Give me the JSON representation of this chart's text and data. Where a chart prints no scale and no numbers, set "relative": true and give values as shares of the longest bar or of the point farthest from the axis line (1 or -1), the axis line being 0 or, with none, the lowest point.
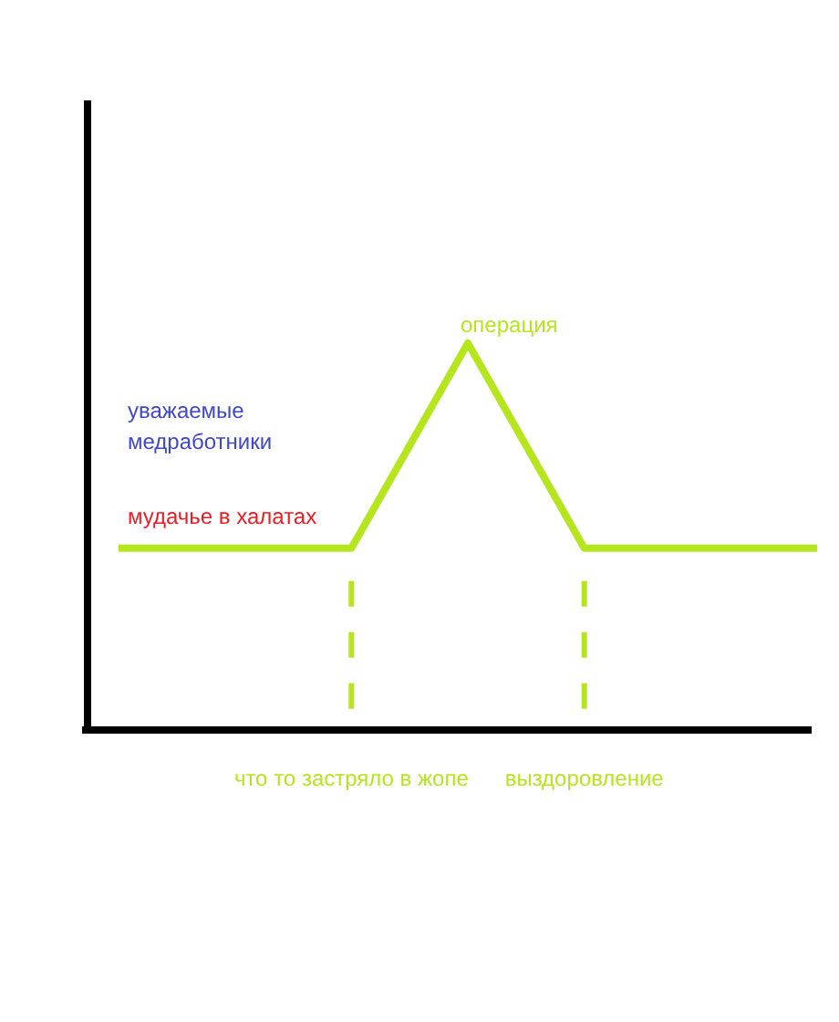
{
  "chart_data": {
    "type": "line",
    "relative": true,
    "categories": [
      null,
      null,
      "что то застряло в жопе",
      null,
      "выздоровление",
      null,
      null
    ],
    "series": [
      {
        "color": "#b5e61d",
        "values": [
          0.47,
          0.47,
          0.47,
          1,
          0.47,
          0.47,
          0.47
        ]
      }
    ],
    "ref_lines": [
      {
        "axis": "x",
        "value": "что то застряло в жопе",
        "color": "#b5e61d",
        "line_style": "dashed"
      },
      {
        "axis": "x",
        "value": "выздоровление",
        "color": "#b5e61d",
        "line_style": "dashed"
      }
    ],
    "annotations": [
      "операция",
      "уважаемые медработники",
      "мудачье в халатах"
    ],
    "marker": "none",
    "line_style": "solid"
  }
}
